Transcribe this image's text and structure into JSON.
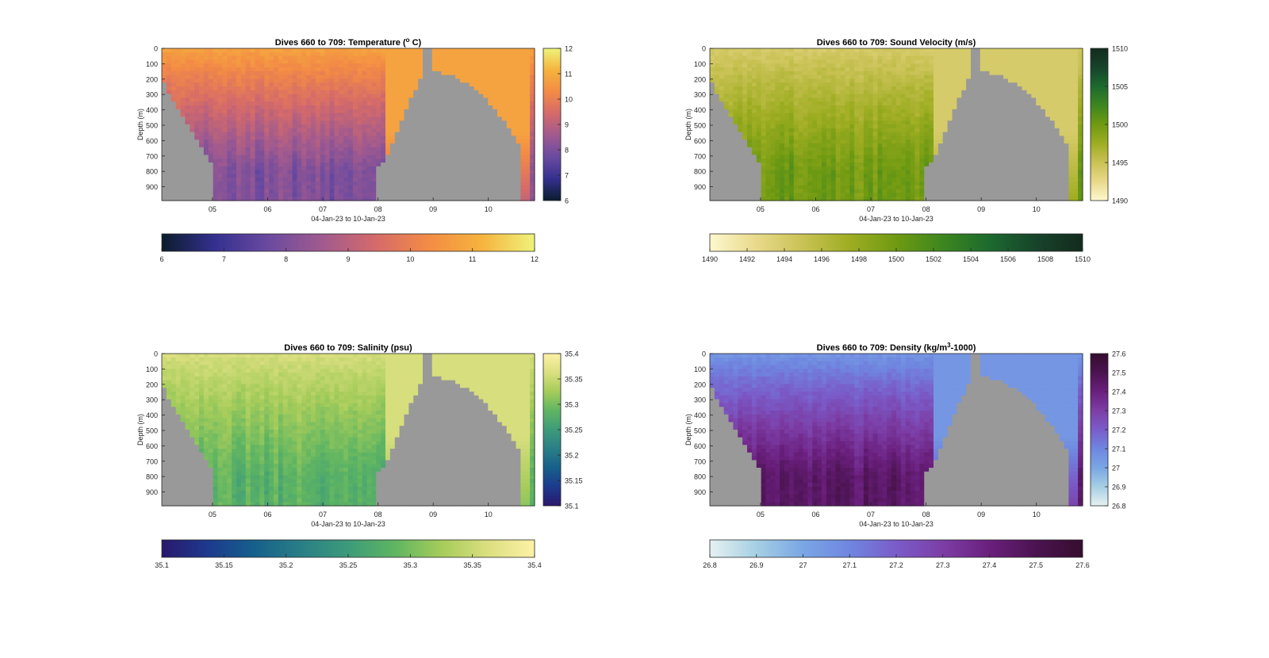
{
  "figure": {
    "xlabel": "04-Jan-23 to 10-Jan-23",
    "ylabel": "Depth (m)",
    "depth_ticks": [
      "0",
      "100",
      "200",
      "300",
      "400",
      "500",
      "600",
      "700",
      "800",
      "900"
    ],
    "date_ticks": [
      "05",
      "06",
      "07",
      "08",
      "09",
      "10"
    ]
  },
  "chart_data": [
    {
      "type": "heatmap",
      "title_main": "Dives 660 to 709: Temperature (",
      "title_sup": "o",
      "title_tail": " C)",
      "colormap": "thermal",
      "colors": [
        "#0b1c2c",
        "#34308f",
        "#6a4aa0",
        "#a05a8f",
        "#d46a6a",
        "#f38b45",
        "#f6b33d",
        "#eef37a"
      ],
      "clim": [
        6,
        12
      ],
      "side_colorbar_ticks": [
        "12",
        "11",
        "10",
        "9",
        "8",
        "7",
        "6"
      ],
      "bottom_colorbar_ticks": [
        "6",
        "7",
        "8",
        "9",
        "10",
        "11",
        "12"
      ],
      "ylim": [
        0,
        990
      ],
      "x_days": [
        "04-Jan-23",
        "05-Jan-23",
        "06-Jan-23",
        "07-Jan-23",
        "08-Jan-23",
        "09-Jan-23",
        "10-Jan-23"
      ],
      "surface_value_approx": 10.8,
      "bottom_value_approx": 8.0
    },
    {
      "type": "heatmap",
      "title_main": "Dives 660 to 709: Sound Velocity (m/s)",
      "title_sup": "",
      "title_tail": "",
      "colormap": "speed",
      "colors": [
        "#fdf8cf",
        "#e8d98a",
        "#c9c255",
        "#9ead22",
        "#6f9a12",
        "#3d861f",
        "#1c6a2e",
        "#17432b",
        "#132b1d"
      ],
      "clim": [
        1490,
        1510
      ],
      "side_colorbar_ticks": [
        "1510",
        "1505",
        "1500",
        "1495",
        "1490"
      ],
      "bottom_colorbar_ticks": [
        "1490",
        "1492",
        "1494",
        "1496",
        "1498",
        "1500",
        "1502",
        "1504",
        "1506",
        "1508",
        "1510"
      ],
      "ylim": [
        0,
        990
      ],
      "surface_value_approx": 1494,
      "bottom_value_approx": 1500
    },
    {
      "type": "heatmap",
      "title_main": "Dives 660 to 709: Salinity (psu)",
      "title_sup": "",
      "title_tail": "",
      "colormap": "haline",
      "colors": [
        "#2a186c",
        "#1d3a8e",
        "#16608b",
        "#2a7f86",
        "#3d9b7a",
        "#5fb562",
        "#a5cc5a",
        "#dbdf80",
        "#fdf1a6"
      ],
      "clim": [
        35.1,
        35.4
      ],
      "side_colorbar_ticks": [
        "35.4",
        "35.35",
        "35.3",
        "35.25",
        "35.2",
        "35.15",
        "35.1"
      ],
      "bottom_colorbar_ticks": [
        "35.1",
        "35.15",
        "35.2",
        "35.25",
        "35.3",
        "35.35",
        "35.4"
      ],
      "ylim": [
        0,
        990
      ],
      "surface_value_approx": 35.36,
      "bottom_value_approx": 35.28
    },
    {
      "type": "heatmap",
      "title_main": "Dives 660 to 709: Density (kg/m",
      "title_sup": "3",
      "title_tail": "-1000)",
      "colormap": "dense",
      "colors": [
        "#e6f1f1",
        "#a6cfe3",
        "#7aa6e4",
        "#6f86e0",
        "#7a5cc9",
        "#7c3ea6",
        "#6a1f7d",
        "#4b1350",
        "#360d2e"
      ],
      "clim": [
        26.8,
        27.6
      ],
      "side_colorbar_ticks": [
        "27.6",
        "27.5",
        "27.4",
        "27.3",
        "27.2",
        "27.1",
        "27",
        "26.9",
        "26.8"
      ],
      "bottom_colorbar_ticks": [
        "26.8",
        "26.9",
        "27",
        "27.1",
        "27.2",
        "27.3",
        "27.4",
        "27.5",
        "27.6"
      ],
      "ylim": [
        0,
        990
      ],
      "surface_value_approx": 27.05,
      "bottom_value_approx": 27.45
    }
  ]
}
